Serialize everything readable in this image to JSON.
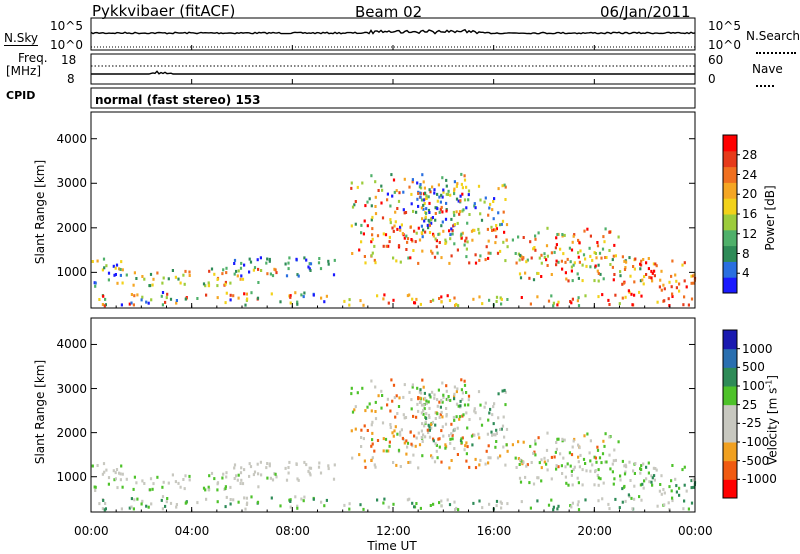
{
  "header": {
    "station": "Pykkvibaer (fitACF)",
    "beam": "Beam 02",
    "date": "06/Jan/2011"
  },
  "noise_panel": {
    "left_label": "N.Sky",
    "right_label": "N.Search",
    "ticks": [
      "10^5",
      "10^0"
    ]
  },
  "freq_panel": {
    "left_label_1": "Freq.",
    "left_label_2": "[MHz]",
    "left_ticks": [
      "18",
      "8"
    ],
    "right_label": "Nave",
    "right_ticks": [
      "60",
      "0"
    ]
  },
  "cpid": {
    "label": "CPID",
    "value": "normal (fast stereo) 153"
  },
  "colors": {
    "power_scale": [
      "#1a1aff",
      "#2a6fe0",
      "#2e8b57",
      "#4fb06a",
      "#9ccc3c",
      "#f2d21a",
      "#f5a623",
      "#f07020",
      "#e63a1a",
      "#ff0000"
    ],
    "velocity_scale": [
      "#ff0000",
      "#f05a10",
      "#f0a020",
      "#c8c8c0",
      "#c8c8c0",
      "#4ec22a",
      "#2e8b57",
      "#2a6fb0",
      "#1a1ab0"
    ],
    "ground": "#bfbfbf"
  },
  "chart_data": [
    {
      "type": "heatmap",
      "title": "",
      "ylabel": "Slant Range [km]",
      "xlabel": "",
      "ylim": [
        200,
        4600
      ],
      "yticks": [
        "1000",
        "2000",
        "3000",
        "4000"
      ],
      "ytick_values": [
        1000,
        2000,
        3000,
        4000
      ],
      "colorbar": {
        "label": "Power [dB]",
        "tick_labels": [
          "4",
          "8",
          "12",
          "16",
          "20",
          "24",
          "28"
        ],
        "range": [
          0,
          32
        ]
      }
    },
    {
      "type": "heatmap",
      "title": "",
      "ylabel": "Slant Range [km]",
      "xlabel": "Time UT",
      "ylim": [
        200,
        4600
      ],
      "yticks": [
        "1000",
        "2000",
        "3000",
        "4000"
      ],
      "ytick_values": [
        1000,
        2000,
        3000,
        4000
      ],
      "xticks": [
        "00:00",
        "04:00",
        "08:00",
        "12:00",
        "16:00",
        "20:00",
        "00:00"
      ],
      "xtick_values": [
        0,
        4,
        8,
        12,
        16,
        20,
        24
      ],
      "colorbar": {
        "label": "Velocity [m s-1]",
        "label_main": "Velocity [m s",
        "label_sup": "-1",
        "label_end": "]",
        "tick_labels": [
          "1000",
          "500",
          "100",
          "25",
          "-25",
          "-100",
          "-500",
          "-1000"
        ]
      }
    }
  ]
}
